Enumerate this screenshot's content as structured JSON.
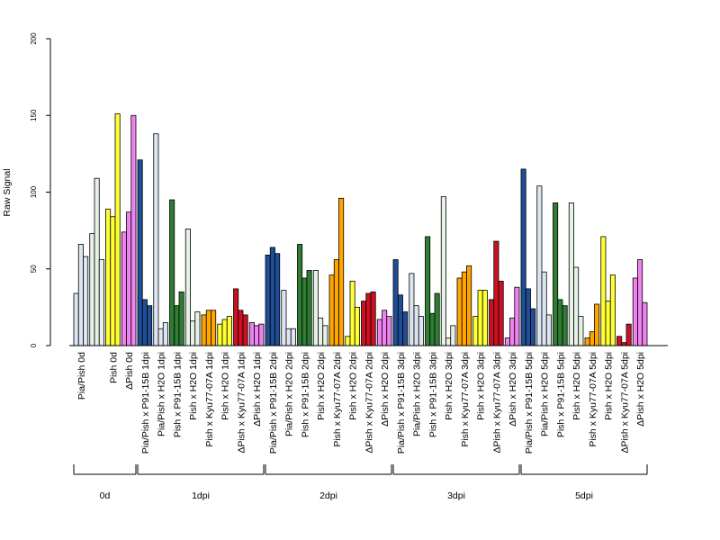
{
  "chart_data": {
    "type": "bar",
    "title": "",
    "ylabel": "Raw Signal",
    "ylim": [
      0,
      200
    ],
    "yticks": [
      0,
      50,
      100,
      150,
      200
    ],
    "grid": false,
    "legend": "none",
    "categories": [
      "Pia/Pish 0d",
      "Pia/Pish 0d",
      "Pish 0d",
      "ΔPish 0d",
      "Pia/Pish x P91-15B 1dpi",
      "Pia/Pish x H2O 1dpi",
      "Pish x P91-15B 1dpi",
      "Pish x H2O 1dpi",
      "Pish x Kyu77-07A 1dpi",
      "Pish x H2O 1dpi",
      "ΔPish x Kyu77-07A 1dpi",
      "ΔPish x H2O 1dpi",
      "Pia/Pish x P91-15B 2dpi",
      "Pia/Pish x H2O 2dpi",
      "Pish x P91-15B 2dpi",
      "Pish x H2O 2dpi",
      "Pish x Kyu77-07A 2dpi",
      "Pish x H2O 2dpi",
      "ΔPish x Kyu77-07A 2dpi",
      "ΔPish x H2O 2dpi",
      "Pia/Pish x P91-15B 3dpi",
      "Pia/Pish x H2O 3dpi",
      "Pish x P91-15B 3dpi",
      "Pish x H2O 3dpi",
      "Pish x Kyu77-07A 3dpi",
      "Pish x H2O 3dpi",
      "ΔPish x Kyu77-07A 3dpi",
      "ΔPish x H2O 3dpi",
      "Pia/Pish x P91-15B 5dpi",
      "Pia/Pish x H2O 5dpi",
      "Pish x P91-15B 5dpi",
      "Pish x H2O 5dpi",
      "Pish x Kyu77-07A 5dpi",
      "Pish x H2O 5dpi",
      "ΔPish x Kyu77-07A 5dpi",
      "ΔPish x H2O 5dpi"
    ],
    "label_show": [
      true,
      false,
      true,
      true,
      true,
      true,
      true,
      true,
      true,
      true,
      true,
      true,
      true,
      true,
      true,
      true,
      true,
      true,
      true,
      true,
      true,
      true,
      true,
      true,
      true,
      true,
      true,
      true,
      true,
      true,
      true,
      true,
      true,
      true,
      true,
      true
    ],
    "colors": [
      "#dce6f2",
      "#e6f2e6",
      "#ffff33",
      "#ee82ee",
      "#1f4e96",
      "#dce6f2",
      "#2e7d32",
      "#e6f2e6",
      "#ffa500",
      "#ffff33",
      "#cc1122",
      "#ee82ee",
      "#1f4e96",
      "#dce6f2",
      "#2e7d32",
      "#e6f2e6",
      "#ffa500",
      "#ffff33",
      "#cc1122",
      "#ee82ee",
      "#1f4e96",
      "#dce6f2",
      "#2e7d32",
      "#e6f2e6",
      "#ffa500",
      "#ffff33",
      "#cc1122",
      "#ee82ee",
      "#1f4e96",
      "#dce6f2",
      "#2e7d32",
      "#e6f2e6",
      "#ffa500",
      "#ffff33",
      "#cc1122",
      "#ee82ee"
    ],
    "values": [
      [
        34,
        66,
        58
      ],
      [
        73,
        109,
        56
      ],
      [
        89,
        84,
        151
      ],
      [
        74,
        87,
        150
      ],
      [
        121,
        30,
        26
      ],
      [
        138,
        11,
        15
      ],
      [
        95,
        26,
        35
      ],
      [
        76,
        16,
        22
      ],
      [
        20,
        23,
        23
      ],
      [
        14,
        17,
        19
      ],
      [
        37,
        23,
        20
      ],
      [
        15,
        13,
        14
      ],
      [
        59,
        64,
        60
      ],
      [
        36,
        11,
        11
      ],
      [
        66,
        44,
        49
      ],
      [
        49,
        18,
        13
      ],
      [
        46,
        56,
        96
      ],
      [
        6,
        42,
        25
      ],
      [
        29,
        34,
        35
      ],
      [
        17,
        23,
        19
      ],
      [
        56,
        33,
        22
      ],
      [
        47,
        26,
        19
      ],
      [
        71,
        21,
        34
      ],
      [
        97,
        5,
        13
      ],
      [
        44,
        48,
        52
      ],
      [
        19,
        36,
        36
      ],
      [
        30,
        68,
        42
      ],
      [
        5,
        18,
        38
      ],
      [
        115,
        37,
        24
      ],
      [
        104,
        48,
        20
      ],
      [
        93,
        30,
        26
      ],
      [
        93,
        51,
        19
      ],
      [
        5,
        9,
        27
      ],
      [
        71,
        29,
        46
      ],
      [
        6,
        2,
        14
      ],
      [
        44,
        56,
        28
      ]
    ],
    "groups": [
      {
        "label": "0d",
        "from": 0,
        "to": 3
      },
      {
        "label": "1dpi",
        "from": 4,
        "to": 11
      },
      {
        "label": "2dpi",
        "from": 12,
        "to": 19
      },
      {
        "label": "3dpi",
        "from": 20,
        "to": 27
      },
      {
        "label": "5dpi",
        "from": 28,
        "to": 35
      }
    ]
  }
}
